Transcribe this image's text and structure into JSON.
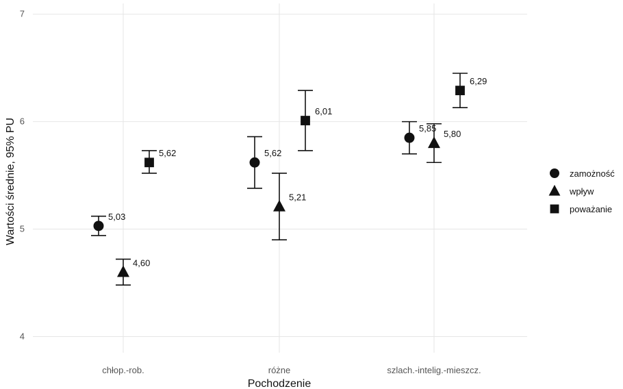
{
  "chart_data": {
    "type": "scatter",
    "xlabel": "Pochodzenie",
    "ylabel": "Wartości średnie, 95% PU",
    "categories": [
      "chłop.-rob.",
      "różne",
      "szlach.-intelig.-mieszcz."
    ],
    "ylim": [
      3.85,
      7.1
    ],
    "yticks": [
      4,
      5,
      6,
      7
    ],
    "yticklabels": [
      "4",
      "5",
      "6",
      "7"
    ],
    "grid": true,
    "legend_position": "right",
    "series": [
      {
        "name": "zamożność",
        "marker": "circle",
        "values": [
          5.03,
          5.62,
          5.85
        ],
        "lower": [
          4.94,
          5.38,
          5.7
        ],
        "upper": [
          5.12,
          5.86,
          6.0
        ],
        "labels": [
          "5,03",
          "5,62",
          "5,85"
        ]
      },
      {
        "name": "wpływ",
        "marker": "triangle",
        "values": [
          4.6,
          5.21,
          5.8
        ],
        "lower": [
          4.48,
          4.9,
          5.62
        ],
        "upper": [
          4.72,
          5.52,
          5.98
        ],
        "labels": [
          "4,60",
          "5,21",
          "5,80"
        ]
      },
      {
        "name": "poważanie",
        "marker": "square",
        "values": [
          5.62,
          6.01,
          6.29
        ],
        "lower": [
          5.52,
          5.73,
          6.13
        ],
        "upper": [
          5.73,
          6.29,
          6.45
        ],
        "labels": [
          "5,62",
          "6,01",
          "6,29"
        ]
      }
    ],
    "colors": {
      "marker": "#111111",
      "grid": "#e6e6e6"
    }
  }
}
